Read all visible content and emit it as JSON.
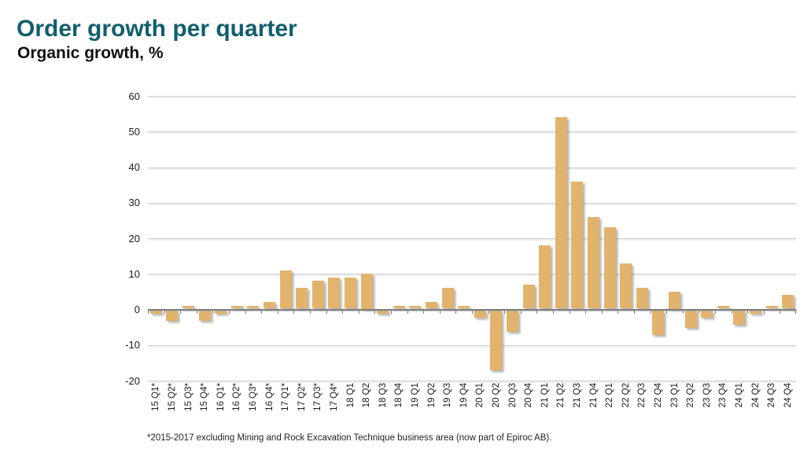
{
  "header": {
    "title": "Order growth per quarter",
    "subtitle": "Organic growth, %"
  },
  "chart_data": {
    "type": "bar",
    "title": "Order growth per quarter",
    "subtitle": "Organic growth, %",
    "categories": [
      "15 Q1*",
      "15 Q2*",
      "15 Q3*",
      "15 Q4*",
      "16 Q1*",
      "16 Q2*",
      "16 Q3*",
      "16 Q4*",
      "17 Q1*",
      "17 Q2*",
      "17 Q3*",
      "17 Q4*",
      "18 Q1",
      "18 Q2",
      "18 Q3",
      "18 Q4",
      "19 Q1",
      "19 Q2",
      "19 Q3",
      "19 Q4",
      "20 Q1",
      "20 Q2",
      "20 Q3",
      "20 Q4",
      "21 Q1",
      "21 Q2",
      "21 Q3",
      "21 Q4",
      "22 Q1",
      "22 Q2",
      "22 Q3",
      "22 Q4",
      "23 Q1",
      "23 Q2",
      "23 Q3",
      "23 Q4",
      "24 Q1",
      "24 Q2",
      "24 Q3",
      "24 Q4"
    ],
    "values": [
      -1,
      -3,
      1,
      -3,
      -1,
      1,
      1,
      2,
      11,
      6,
      8,
      9,
      9,
      10,
      -1,
      1,
      1,
      2,
      6,
      1,
      -2,
      -17,
      -6,
      7,
      18,
      54,
      36,
      26,
      23,
      13,
      6,
      -7,
      5,
      -5,
      -2,
      1,
      -4,
      -1,
      1,
      4
    ],
    "yticks": [
      60,
      50,
      40,
      30,
      20,
      10,
      0,
      -10,
      -20
    ],
    "ylim": [
      -20,
      60
    ],
    "grid": true,
    "legend": "none",
    "xlabel": "",
    "ylabel": ""
  },
  "footnote": {
    "text": "*2015-2017 excluding Mining and Rock Excavation Technique business area (now part of Epiroc AB)."
  },
  "colors": {
    "title": "#115e6d",
    "subtitle": "#111111",
    "bar": "#e2b36c",
    "gridline": "#d0d0d0",
    "zero_line": "#7c7c7c",
    "axis_text": "#1a1a1a"
  }
}
